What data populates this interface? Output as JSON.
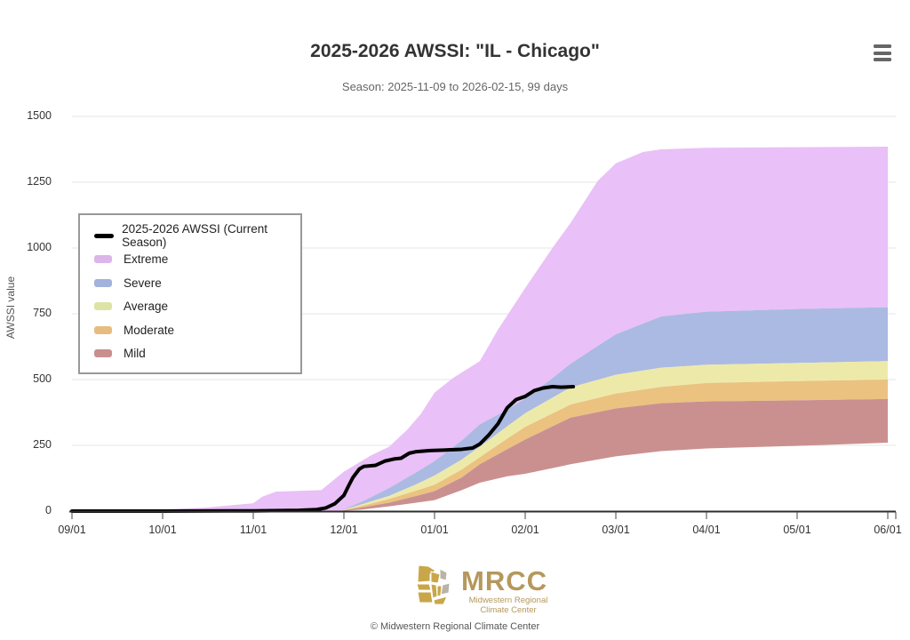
{
  "header": {
    "title": "2025-2026 AWSSI: \"IL - Chicago\"",
    "subtitle": "Season: 2025-11-09 to 2026-02-15, 99 days"
  },
  "axes": {
    "y_label": "AWSSI value",
    "y_ticks": [
      0,
      250,
      500,
      750,
      1000,
      1250,
      1500
    ],
    "x_ticks": [
      "09/01",
      "10/01",
      "11/01",
      "12/01",
      "01/01",
      "02/01",
      "03/01",
      "04/01",
      "05/01",
      "06/01"
    ]
  },
  "legend": {
    "items": [
      {
        "label": "2025-2026 AWSSI (Current Season)",
        "color": "#000000",
        "shape": "line"
      },
      {
        "label": "Extreme",
        "color": "#dcb5ea",
        "shape": "band"
      },
      {
        "label": "Severe",
        "color": "#a3b1dd",
        "shape": "band"
      },
      {
        "label": "Average",
        "color": "#dde3a6",
        "shape": "band"
      },
      {
        "label": "Moderate",
        "color": "#e6bd7e",
        "shape": "band"
      },
      {
        "label": "Mild",
        "color": "#c98f8f",
        "shape": "band"
      }
    ]
  },
  "colors": {
    "grid": "#e6e6e6",
    "axis": "#2d2d2d",
    "tick": "#444444",
    "logo_tan": "#b5985c",
    "map_gold": "#c9a648",
    "map_gray": "#b9b3a8"
  },
  "footer": {
    "logo_text": "MRCC",
    "logo_sub1": "Midwestern Regional",
    "logo_sub2": "Climate Center",
    "copyright": "© Midwestern Regional Climate Center"
  },
  "chart_data": {
    "type": "area",
    "title": "2025-2026 AWSSI: \"IL - Chicago\"",
    "subtitle": "Season: 2025-11-09 to 2026-02-15, 99 days",
    "xlabel": "",
    "ylabel": "AWSSI value",
    "ylim": [
      0,
      1500
    ],
    "x_unit": "months since Sep 1 (0 = 09/01 ... 9 = 06/01)",
    "x_ticks": [
      "09/01",
      "10/01",
      "11/01",
      "12/01",
      "01/01",
      "02/01",
      "03/01",
      "04/01",
      "05/01",
      "06/01"
    ],
    "y_ticks": [
      0,
      250,
      500,
      750,
      1000,
      1250,
      1500
    ],
    "grid": true,
    "legend_position": "upper-left box",
    "boundaries": {
      "min": [
        [
          2.95,
          0
        ],
        [
          3.2,
          6
        ],
        [
          3.5,
          18
        ],
        [
          3.8,
          32
        ],
        [
          4,
          42
        ],
        [
          4.3,
          80
        ],
        [
          4.5,
          108
        ],
        [
          4.8,
          132
        ],
        [
          5,
          142
        ],
        [
          5.5,
          178
        ],
        [
          6,
          208
        ],
        [
          6.5,
          228
        ],
        [
          7,
          238
        ],
        [
          8,
          248
        ],
        [
          9,
          260
        ]
      ],
      "mild_top": [
        [
          2.95,
          0
        ],
        [
          3.2,
          14
        ],
        [
          3.5,
          32
        ],
        [
          3.8,
          58
        ],
        [
          4,
          76
        ],
        [
          4.3,
          128
        ],
        [
          4.5,
          178
        ],
        [
          4.8,
          235
        ],
        [
          5,
          272
        ],
        [
          5.5,
          355
        ],
        [
          6,
          390
        ],
        [
          6.5,
          410
        ],
        [
          7,
          417
        ],
        [
          8,
          421
        ],
        [
          9,
          426
        ]
      ],
      "moderate_top": [
        [
          2.95,
          0
        ],
        [
          3.2,
          20
        ],
        [
          3.5,
          46
        ],
        [
          3.8,
          78
        ],
        [
          4,
          100
        ],
        [
          4.3,
          158
        ],
        [
          4.5,
          205
        ],
        [
          4.8,
          275
        ],
        [
          5,
          320
        ],
        [
          5.5,
          405
        ],
        [
          6,
          447
        ],
        [
          6.5,
          472
        ],
        [
          7,
          487
        ],
        [
          8,
          494
        ],
        [
          9,
          500
        ]
      ],
      "average_top": [
        [
          2.95,
          0
        ],
        [
          3.2,
          26
        ],
        [
          3.5,
          58
        ],
        [
          3.8,
          102
        ],
        [
          4,
          135
        ],
        [
          4.3,
          196
        ],
        [
          4.5,
          245
        ],
        [
          4.8,
          322
        ],
        [
          5,
          372
        ],
        [
          5.5,
          470
        ],
        [
          6,
          518
        ],
        [
          6.5,
          545
        ],
        [
          7,
          556
        ],
        [
          8,
          563
        ],
        [
          9,
          570
        ]
      ],
      "severe_top": [
        [
          0.6,
          0
        ],
        [
          2.95,
          0
        ],
        [
          3.2,
          36
        ],
        [
          3.5,
          88
        ],
        [
          3.8,
          148
        ],
        [
          4,
          190
        ],
        [
          4.3,
          268
        ],
        [
          4.5,
          330
        ],
        [
          4.8,
          385
        ],
        [
          5,
          428
        ],
        [
          5.3,
          505
        ],
        [
          5.5,
          560
        ],
        [
          5.8,
          628
        ],
        [
          6,
          672
        ],
        [
          6.5,
          740
        ],
        [
          7,
          758
        ],
        [
          8,
          768
        ],
        [
          9,
          775
        ]
      ],
      "extreme_top": [
        [
          0.6,
          2
        ],
        [
          1,
          6
        ],
        [
          1.5,
          14
        ],
        [
          2,
          30
        ],
        [
          2.1,
          55
        ],
        [
          2.25,
          74
        ],
        [
          2.75,
          80
        ],
        [
          3,
          150
        ],
        [
          3.3,
          212
        ],
        [
          3.5,
          245
        ],
        [
          3.7,
          310
        ],
        [
          3.85,
          370
        ],
        [
          4,
          450
        ],
        [
          4.2,
          505
        ],
        [
          4.5,
          570
        ],
        [
          4.7,
          690
        ],
        [
          5,
          848
        ],
        [
          5.3,
          1000
        ],
        [
          5.5,
          1095
        ],
        [
          5.8,
          1255
        ],
        [
          6,
          1322
        ],
        [
          6.3,
          1365
        ],
        [
          6.5,
          1375
        ],
        [
          7,
          1381
        ],
        [
          8,
          1383
        ],
        [
          9,
          1385
        ]
      ]
    },
    "bands": [
      {
        "name": "Extreme",
        "color": "#e9c0f7",
        "between": [
          "severe_top",
          "extreme_top"
        ]
      },
      {
        "name": "Severe",
        "color": "#abbae2",
        "between": [
          "average_top",
          "severe_top"
        ]
      },
      {
        "name": "Average",
        "color": "#edeaa9",
        "between": [
          "moderate_top",
          "average_top"
        ]
      },
      {
        "name": "Moderate",
        "color": "#ebc280",
        "between": [
          "mild_top",
          "moderate_top"
        ]
      },
      {
        "name": "Mild",
        "color": "#ca9090",
        "between": [
          "min",
          "mild_top"
        ]
      }
    ],
    "current_season": {
      "name": "2025-2026 AWSSI (Current Season)",
      "color": "#000000",
      "points": [
        [
          0,
          0
        ],
        [
          1,
          0
        ],
        [
          2,
          1
        ],
        [
          2.5,
          3
        ],
        [
          2.7,
          6
        ],
        [
          2.8,
          12
        ],
        [
          2.9,
          28
        ],
        [
          3,
          60
        ],
        [
          3.05,
          95
        ],
        [
          3.1,
          128
        ],
        [
          3.17,
          160
        ],
        [
          3.22,
          170
        ],
        [
          3.35,
          174
        ],
        [
          3.45,
          190
        ],
        [
          3.55,
          198
        ],
        [
          3.63,
          201
        ],
        [
          3.72,
          220
        ],
        [
          3.8,
          226
        ],
        [
          3.95,
          230
        ],
        [
          4.1,
          232
        ],
        [
          4.3,
          235
        ],
        [
          4.42,
          240
        ],
        [
          4.5,
          255
        ],
        [
          4.6,
          290
        ],
        [
          4.7,
          332
        ],
        [
          4.8,
          392
        ],
        [
          4.9,
          424
        ],
        [
          5,
          436
        ],
        [
          5.1,
          458
        ],
        [
          5.2,
          468
        ],
        [
          5.3,
          473
        ],
        [
          5.4,
          471
        ],
        [
          5.53,
          473
        ]
      ]
    }
  }
}
